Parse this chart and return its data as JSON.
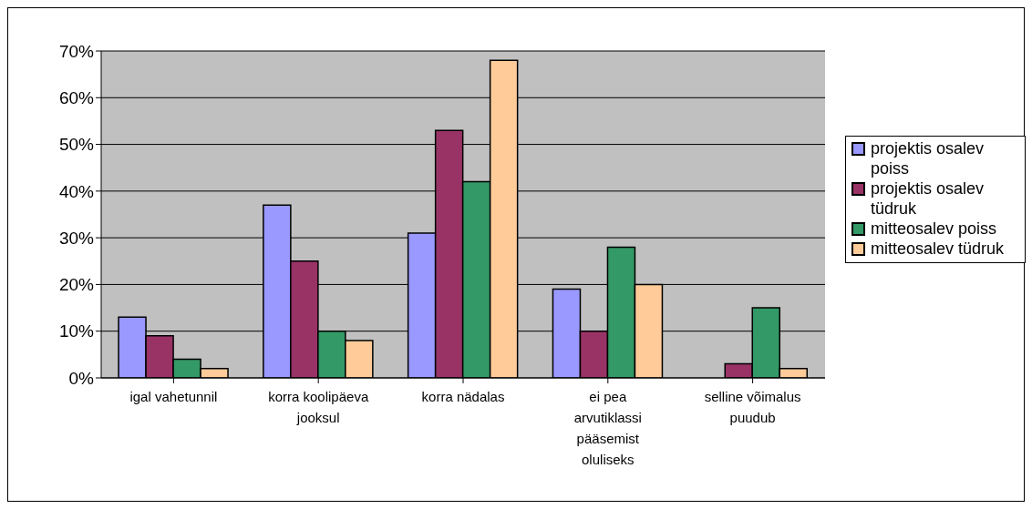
{
  "chart_data": {
    "type": "bar",
    "categories": [
      "igal vahetunnil",
      "korra koolipäeva jooksul",
      "korra nädalas",
      "ei pea arvutiklassi pääsemist oluliseks",
      "selline võimalus puudub"
    ],
    "series": [
      {
        "name": "projektis osalev poiss",
        "color": "#9999ff",
        "values": [
          13,
          37,
          31,
          19,
          null
        ]
      },
      {
        "name": "projektis osalev tüdruk",
        "color": "#993366",
        "values": [
          9,
          25,
          53,
          10,
          3
        ]
      },
      {
        "name": "mitteosalev poiss",
        "color": "#339966",
        "values": [
          4,
          10,
          42,
          28,
          15
        ]
      },
      {
        "name": "mitteosalev tüdruk",
        "color": "#ffcc99",
        "values": [
          2,
          8,
          68,
          20,
          2
        ]
      }
    ],
    "ylim": [
      0,
      70
    ],
    "yticks": [
      {
        "value": 0,
        "label": "0%"
      },
      {
        "value": 10,
        "label": "10%"
      },
      {
        "value": 20,
        "label": "20%"
      },
      {
        "value": 30,
        "label": "30%"
      },
      {
        "value": 40,
        "label": "40%"
      },
      {
        "value": 50,
        "label": "50%"
      },
      {
        "value": 60,
        "label": "60%"
      },
      {
        "value": 70,
        "label": "70%"
      }
    ],
    "grid": "y",
    "legend": "right"
  }
}
